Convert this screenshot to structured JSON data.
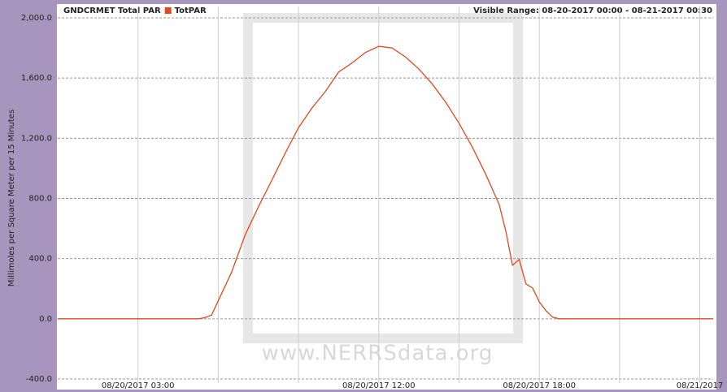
{
  "chart_data": {
    "type": "line",
    "title": "GNDCRMET Total PAR",
    "range_label": "Visible Range: 08-20-2017 00:00 - 08-21-2017 00:30",
    "y_label": "Millimoles per Square Meter per 15 Minutes",
    "watermark": "www.NERRSdata.org",
    "x": [
      0,
      5.25,
      5.5,
      5.75,
      6,
      6.5,
      7,
      7.5,
      8,
      8.5,
      9,
      9.5,
      10,
      10.5,
      11,
      11.5,
      12,
      12.5,
      13,
      13.5,
      14,
      14.5,
      15,
      15.5,
      16,
      16.5,
      16.75,
      17,
      17.25,
      17.5,
      17.75,
      18,
      18.25,
      18.5,
      18.75,
      24.5
    ],
    "series": [
      {
        "name": "TotPAR",
        "color": "#e2471d",
        "values": [
          0,
          0,
          8,
          25,
          120,
          310,
          555,
          744,
          920,
          1100,
          1270,
          1400,
          1510,
          1640,
          1700,
          1770,
          1811,
          1800,
          1740,
          1660,
          1560,
          1440,
          1300,
          1140,
          960,
          760,
          582,
          356,
          394,
          232,
          205,
          113,
          54,
          11,
          0,
          0
        ]
      }
    ],
    "xlim": [
      0,
      24.5
    ],
    "xticks": [
      {
        "value": 3,
        "label": "08/20/2017 03:00"
      },
      {
        "value": 6,
        "label": null
      },
      {
        "value": 9,
        "label": null
      },
      {
        "value": 12,
        "label": "08/20/2017 12:00"
      },
      {
        "value": 15,
        "label": null
      },
      {
        "value": 18,
        "label": "08/20/2017 18:00"
      },
      {
        "value": 21,
        "label": null
      },
      {
        "value": 24,
        "label": "08/21/2017"
      }
    ],
    "ylim": [
      -400,
      2000
    ],
    "yticks": [
      {
        "value": -400,
        "label": "-400.0"
      },
      {
        "value": 0,
        "label": "0.0"
      },
      {
        "value": 400,
        "label": "400.0"
      },
      {
        "value": 800,
        "label": "800.0"
      },
      {
        "value": 1200,
        "label": "1,200.0"
      },
      {
        "value": 1600,
        "label": "1,600.0"
      },
      {
        "value": 2000,
        "label": "2,000.0"
      }
    ],
    "grid": true
  }
}
